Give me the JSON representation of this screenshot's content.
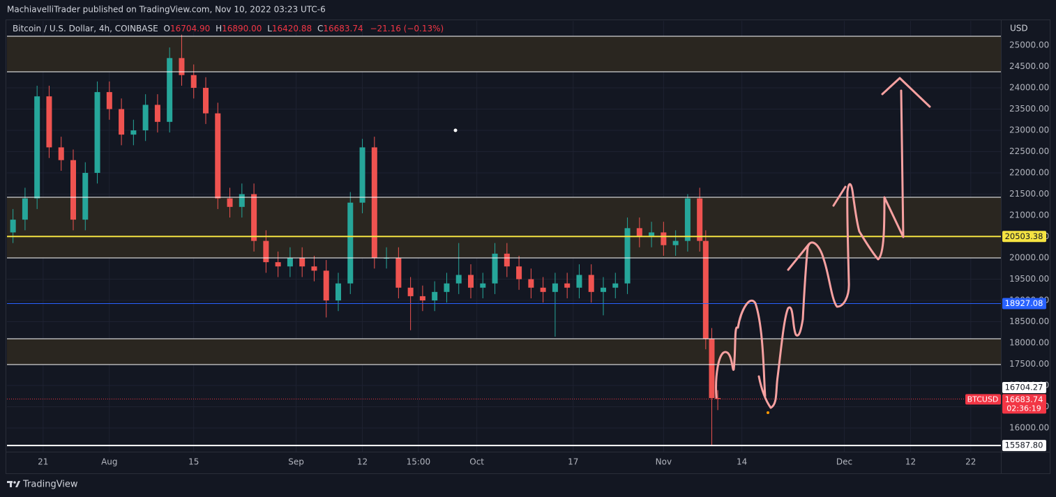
{
  "header": {
    "published": "MachiavelliTrader published on TradingView.com, Nov 10, 2022 03:23 UTC-6",
    "symbol": "Bitcoin / U.S. Dollar, 4h, COINBASE",
    "o_key": "O",
    "open": "16704.90",
    "h_key": "H",
    "high": "16890.00",
    "l_key": "L",
    "low": "16420.88",
    "c_key": "C",
    "close": "16683.74",
    "change": "−21.16 (−0.13%)",
    "currency": "USD"
  },
  "footer": {
    "brand": "TradingView"
  },
  "chart_data": {
    "type": "candlestick",
    "xlim": [
      15,
      180
    ],
    "ylim": [
      15443,
      25574
    ],
    "grid": true,
    "up_color": "#26a69a",
    "down_color": "#ef5350",
    "xticks": [
      {
        "value": 21,
        "label": "21"
      },
      {
        "value": 32,
        "label": "Aug"
      },
      {
        "value": 46,
        "label": "15"
      },
      {
        "value": 63,
        "label": "Sep"
      },
      {
        "value": 74,
        "label": "12"
      },
      {
        "value": 83.3,
        "label": "15:00"
      },
      {
        "value": 93,
        "label": "Oct"
      },
      {
        "value": 109,
        "label": "17"
      },
      {
        "value": 124,
        "label": "Nov"
      },
      {
        "value": 137,
        "label": "14"
      },
      {
        "value": 154,
        "label": "Dec"
      },
      {
        "value": 165,
        "label": "12"
      },
      {
        "value": 175,
        "label": "22"
      }
    ],
    "yticks": [
      {
        "value": 16000,
        "label": "16000.00"
      },
      {
        "value": 16500,
        "label": "16500.00"
      },
      {
        "value": 17000,
        "label": "17000.00"
      },
      {
        "value": 17500,
        "label": "17500.00"
      },
      {
        "value": 18000,
        "label": "18000.00"
      },
      {
        "value": 18500,
        "label": "18500.00"
      },
      {
        "value": 19000,
        "label": "19000.00"
      },
      {
        "value": 19500,
        "label": "19500.00"
      },
      {
        "value": 20000,
        "label": "20000.00"
      },
      {
        "value": 20500,
        "label": "20500.00"
      },
      {
        "value": 21000,
        "label": "21000.00"
      },
      {
        "value": 21500,
        "label": "21500.00"
      },
      {
        "value": 22000,
        "label": "22000.00"
      },
      {
        "value": 22500,
        "label": "22500.00"
      },
      {
        "value": 23000,
        "label": "23000.00"
      },
      {
        "value": 23500,
        "label": "23500.00"
      },
      {
        "value": 24000,
        "label": "24000.00"
      },
      {
        "value": 24500,
        "label": "24500.00"
      },
      {
        "value": 25000,
        "label": "25000.00"
      }
    ],
    "x": [
      16,
      18,
      20,
      22,
      24,
      26,
      28,
      30,
      32,
      34,
      36,
      38,
      40,
      42,
      44,
      46,
      48,
      50,
      52,
      54,
      56,
      58,
      60,
      62,
      64,
      66,
      68,
      70,
      72,
      74,
      76,
      78,
      80,
      82,
      84,
      86,
      88,
      90,
      92,
      94,
      96,
      98,
      100,
      102,
      104,
      106,
      108,
      110,
      112,
      114,
      116,
      118,
      120,
      122,
      124,
      126,
      128,
      130,
      131,
      132,
      133
    ],
    "open": [
      20600,
      20900,
      21400,
      23800,
      22600,
      22300,
      20900,
      22000,
      23900,
      23500,
      22900,
      23000,
      23600,
      23200,
      24700,
      24300,
      24000,
      23400,
      21400,
      21200,
      21500,
      20400,
      19900,
      19800,
      20000,
      19800,
      19700,
      19000,
      19400,
      21300,
      22600,
      20000,
      20000,
      19300,
      19100,
      19000,
      19200,
      19400,
      19600,
      19300,
      19400,
      20100,
      19800,
      19500,
      19300,
      19200,
      19400,
      19300,
      19600,
      19200,
      19300,
      19400,
      20700,
      20500,
      20600,
      20300,
      20400,
      21400,
      20400,
      18100,
      16704.9
    ],
    "high": [
      21150,
      21650,
      24050,
      24050,
      22850,
      22550,
      22250,
      24150,
      24150,
      23750,
      23250,
      23850,
      23850,
      24950,
      25250,
      24550,
      24250,
      23650,
      21650,
      21750,
      21750,
      20650,
      20150,
      20250,
      20250,
      20050,
      19950,
      19650,
      21550,
      22800,
      22850,
      20250,
      20250,
      19550,
      19350,
      19450,
      19650,
      20350,
      19850,
      19650,
      20350,
      20350,
      20050,
      19750,
      19550,
      19650,
      19650,
      19850,
      19850,
      19550,
      19650,
      20950,
      20950,
      20850,
      20850,
      20650,
      21500,
      21650,
      20650,
      18350,
      16890
    ],
    "low": [
      20350,
      20650,
      21150,
      22350,
      22050,
      20650,
      20650,
      21750,
      23250,
      22650,
      22650,
      22750,
      22950,
      22950,
      24050,
      23750,
      23150,
      21150,
      20950,
      20950,
      20150,
      19650,
      19550,
      19550,
      19550,
      19450,
      18600,
      18750,
      19150,
      21050,
      19750,
      19750,
      19050,
      18300,
      18750,
      18750,
      18950,
      19150,
      19050,
      19050,
      19150,
      19550,
      19250,
      19050,
      18950,
      18150,
      19050,
      19050,
      18950,
      18650,
      19050,
      19150,
      20250,
      20250,
      20050,
      20050,
      20150,
      20150,
      17850,
      15587.8,
      16420.88
    ],
    "close": [
      20900,
      21400,
      23800,
      22600,
      22300,
      20900,
      22000,
      23900,
      23500,
      22900,
      23000,
      23600,
      23200,
      24700,
      24300,
      24000,
      23400,
      21400,
      21200,
      21500,
      20400,
      19900,
      19800,
      20000,
      19800,
      19700,
      19000,
      19400,
      21300,
      22600,
      20000,
      20000,
      19300,
      19100,
      19000,
      19200,
      19400,
      19600,
      19300,
      19400,
      20100,
      19800,
      19500,
      19300,
      19200,
      19400,
      19300,
      19600,
      19200,
      19300,
      19400,
      20700,
      20500,
      20600,
      20300,
      20400,
      21400,
      20400,
      18100,
      16704.9,
      16683.74
    ],
    "zones": [
      {
        "from": 24377,
        "to": 25213,
        "color": "#2a2620"
      },
      {
        "from": 20000,
        "to": 21426,
        "color": "#2a2620"
      },
      {
        "from": 17492,
        "to": 18098,
        "color": "#2a2620"
      }
    ],
    "levels": [
      {
        "value": 25213,
        "color": "#ffffff",
        "width": 1
      },
      {
        "value": 24377,
        "color": "#ffffff",
        "width": 1
      },
      {
        "value": 21426,
        "color": "#ffffff",
        "width": 1
      },
      {
        "value": 20503.38,
        "label": "20503.38",
        "color": "#f5e342",
        "text_color": "#131722",
        "width": 2
      },
      {
        "value": 20000,
        "color": "#ffffff",
        "width": 1
      },
      {
        "value": 18927.08,
        "label": "18927.08",
        "color": "#2962ff",
        "text_color": "#ffffff",
        "width": 1
      },
      {
        "value": 18098,
        "color": "#ffffff",
        "width": 1
      },
      {
        "value": 17492,
        "color": "#ffffff",
        "width": 1
      },
      {
        "value": 15587.8,
        "label": "15587.80",
        "color": "#ffffff",
        "text_color": "#131722",
        "width": 2
      }
    ],
    "price_labels": [
      {
        "value": 16704.27,
        "label": "16704.27",
        "color": "#ffffff",
        "text_color": "#131722"
      }
    ],
    "last_price": {
      "symbol": "BTCUSD",
      "value": 16683.74,
      "label": "16683.74",
      "countdown": "02:36:19",
      "color": "#f23645"
    }
  }
}
